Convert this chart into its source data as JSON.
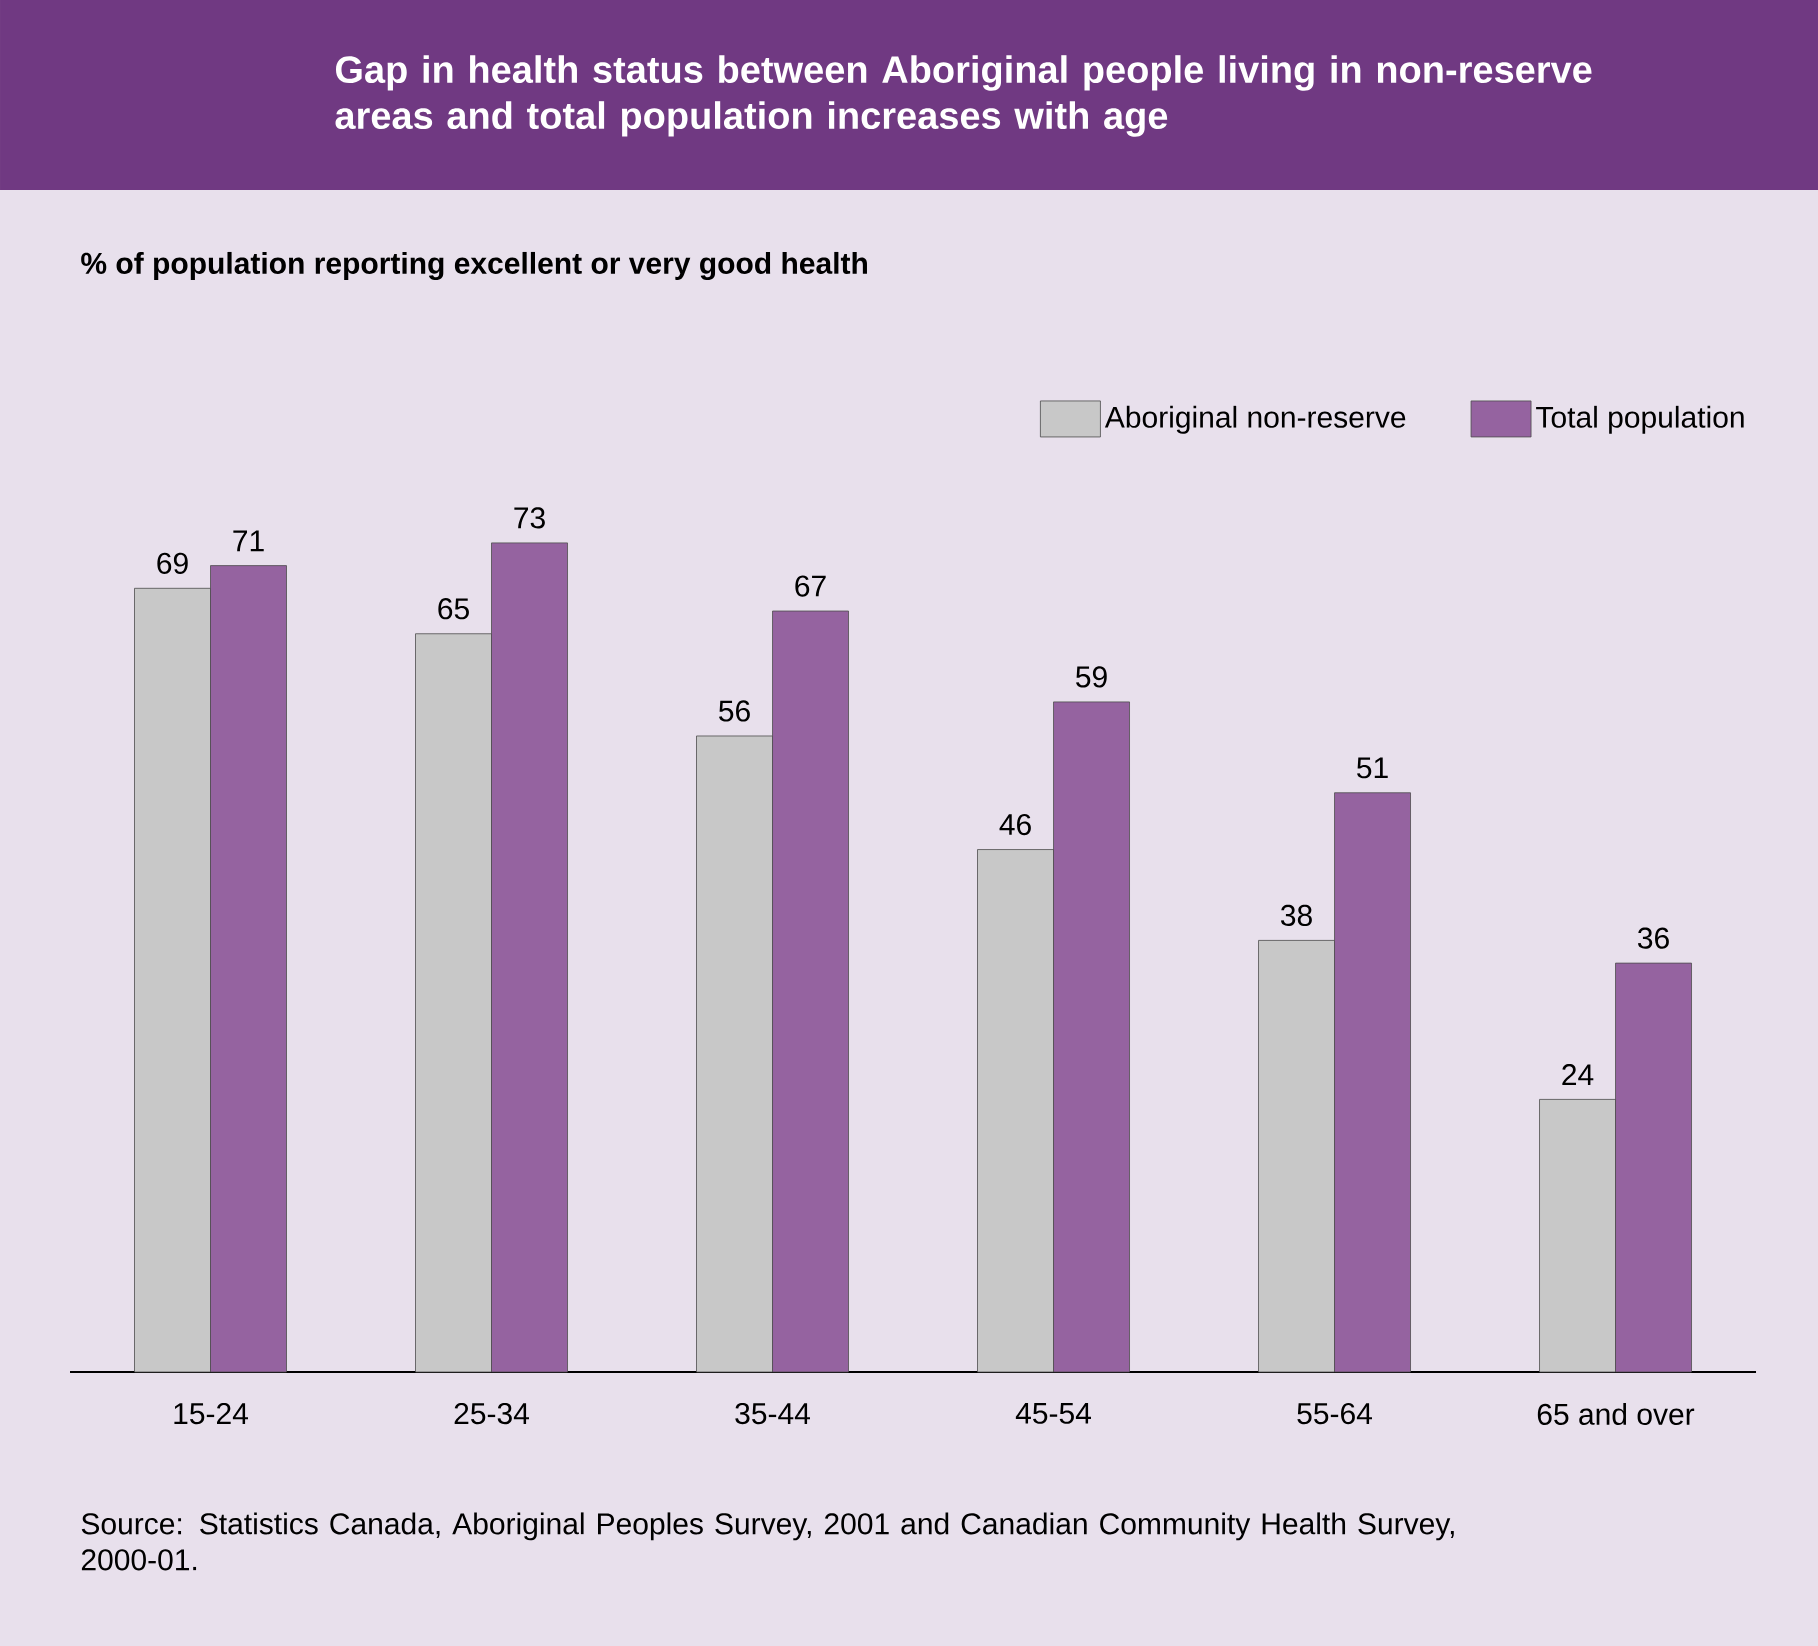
{
  "chart_data": {
    "type": "bar",
    "title": "Gap in health status between Aboriginal people living in non-reserve areas and total population increases with age",
    "subtitle": "% of population reporting excellent or very good health",
    "categories": [
      "15-24",
      "25-34",
      "35-44",
      "45-54",
      "55-64",
      "65 and over"
    ],
    "series": [
      {
        "name": "Aboriginal non-reserve",
        "color": "#c8c8c8",
        "values": [
          69,
          65,
          56,
          46,
          38,
          24
        ]
      },
      {
        "name": "Total population",
        "color": "#9563a0",
        "values": [
          71,
          73,
          67,
          59,
          51,
          36
        ]
      }
    ],
    "data_labels": true,
    "legend": "top right",
    "annotations": [
      "Source: Statistics Canada, Aboriginal Peoples Survey, 2001 and Canadian Community Health Survey, 2000-01."
    ]
  }
}
